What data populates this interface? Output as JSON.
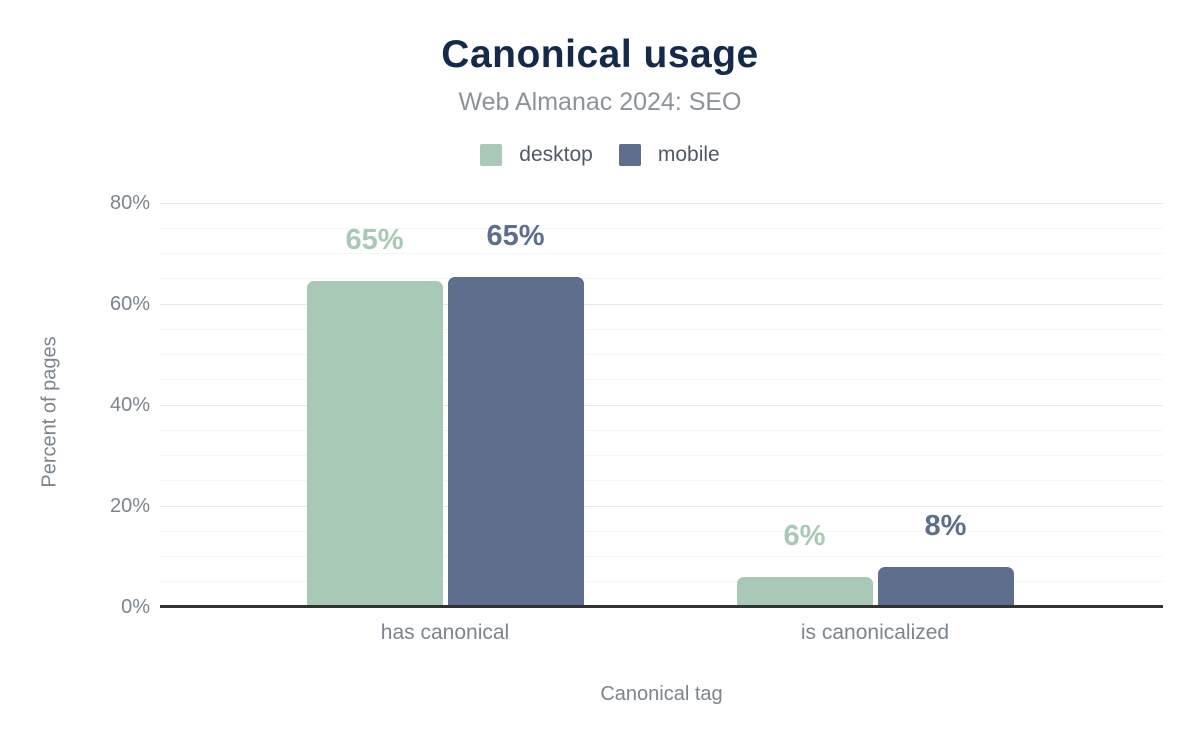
{
  "chart_data": {
    "type": "bar",
    "title": "Canonical usage",
    "subtitle": "Web Almanac 2024: SEO",
    "xlabel": "Canonical tag",
    "ylabel": "Percent of pages",
    "categories": [
      "has canonical",
      "is canonicalized"
    ],
    "series": [
      {
        "name": "desktop",
        "color": "#a7c9b6",
        "values": [
          64.5,
          6
        ],
        "data_labels": [
          "65%",
          "6%"
        ]
      },
      {
        "name": "mobile",
        "color": "#5d6f8d",
        "values": [
          65.3,
          8
        ],
        "data_labels": [
          "65%",
          "8%"
        ]
      }
    ],
    "ylim": [
      0,
      80
    ],
    "yticks": [
      {
        "value": 0,
        "label": "0%"
      },
      {
        "value": 20,
        "label": "20%"
      },
      {
        "value": 40,
        "label": "40%"
      },
      {
        "value": 60,
        "label": "60%"
      },
      {
        "value": 80,
        "label": "80%"
      }
    ],
    "grid": {
      "orientation": "horizontal",
      "minor_step": 5,
      "major_step": 20
    },
    "legend_position": "top"
  },
  "colors": {
    "title": "#15294b",
    "subtitle": "#8d9399",
    "legend_text": "#505a66",
    "axis_text": "#7c858d",
    "grid_minor": "#f4f5f6",
    "grid_major": "#e5e7e9",
    "axis_line": "#333333"
  }
}
